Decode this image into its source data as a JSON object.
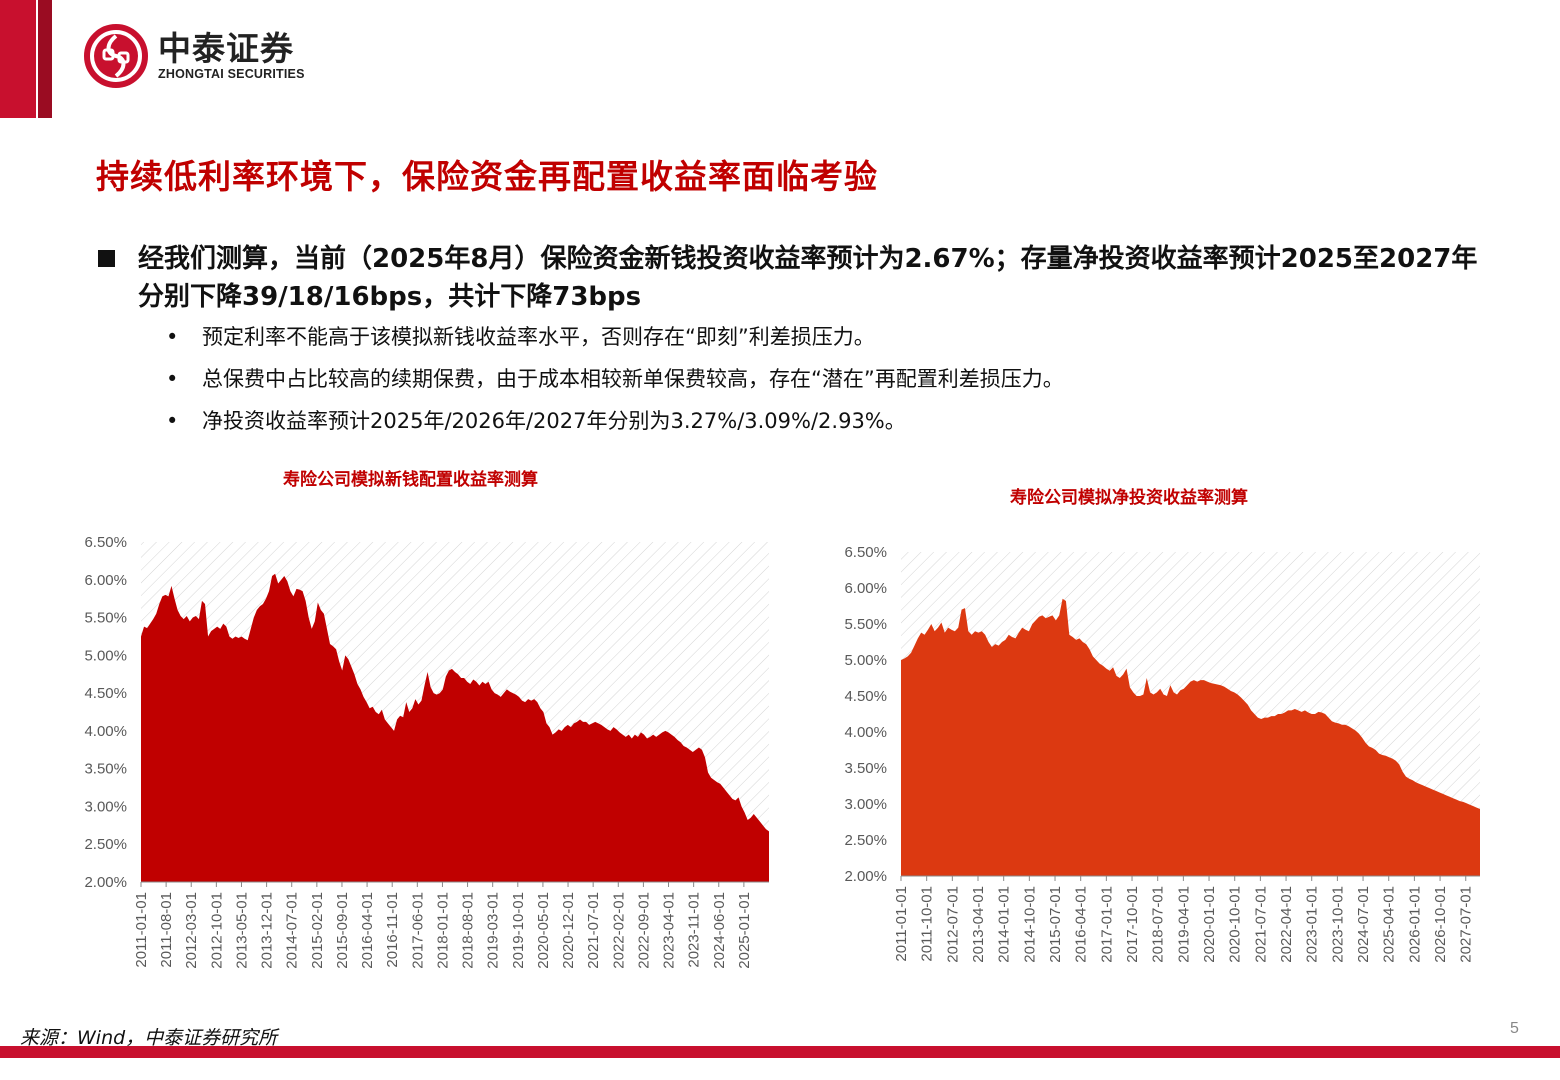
{
  "brand": {
    "name_cn": "中泰证券",
    "name_en": "ZHONGTAI SECURITIES",
    "color": "#c8102e"
  },
  "page_title": "持续低利率环境下，保险资金再配置收益率面临考验",
  "main_bullet": "经我们测算，当前（2025年8月）保险资金新钱投资收益率预计为2.67%；存量净投资收益率预计2025至2027年分别下降39/18/16bps，共计下降73bps",
  "sub_bullets": [
    {
      "marker": "•",
      "text": "预定利率不能高于该模拟新钱收益率水平，否则存在“即刻”利差损压力。"
    },
    {
      "marker": "•",
      "text": "总保费中占比较高的续期保费，由于成本相较新单保费较高，存在“潜在”再配置利差损压力。"
    },
    {
      "marker": "•",
      "text": "净投资收益率预计2025年/2026年/2027年分别为3.27%/3.09%/2.93%。"
    }
  ],
  "chart_data": [
    {
      "type": "area",
      "title": "寿险公司模拟新钱配置收益率测算",
      "color": "#c00000",
      "ylim": [
        2.0,
        6.5
      ],
      "yticks": [
        "6.50%",
        "6.00%",
        "5.50%",
        "5.00%",
        "4.50%",
        "4.00%",
        "3.50%",
        "3.00%",
        "2.50%",
        "2.00%"
      ],
      "xticks": [
        "2011-01-01",
        "2011-08-01",
        "2012-03-01",
        "2012-10-01",
        "2013-05-01",
        "2013-12-01",
        "2014-07-01",
        "2015-02-01",
        "2015-09-01",
        "2016-04-01",
        "2016-11-01",
        "2017-06-01",
        "2018-01-01",
        "2018-08-01",
        "2019-03-01",
        "2019-10-01",
        "2020-05-01",
        "2020-12-01",
        "2021-07-01",
        "2022-02-01",
        "2022-09-01",
        "2023-04-01",
        "2023-11-01",
        "2024-06-01",
        "2025-01-01"
      ],
      "x_start": "2011-01",
      "x_end": "2025-08",
      "values": [
        5.25,
        5.38,
        5.36,
        5.42,
        5.48,
        5.55,
        5.68,
        5.78,
        5.8,
        5.78,
        5.92,
        5.75,
        5.6,
        5.52,
        5.48,
        5.52,
        5.45,
        5.5,
        5.52,
        5.48,
        5.72,
        5.68,
        5.25,
        5.32,
        5.35,
        5.38,
        5.35,
        5.42,
        5.38,
        5.25,
        5.22,
        5.25,
        5.23,
        5.25,
        5.22,
        5.2,
        5.35,
        5.5,
        5.6,
        5.65,
        5.68,
        5.75,
        5.85,
        6.05,
        6.08,
        5.95,
        6.0,
        6.05,
        5.98,
        5.85,
        5.78,
        5.88,
        5.87,
        5.85,
        5.72,
        5.5,
        5.35,
        5.45,
        5.7,
        5.6,
        5.55,
        5.35,
        5.15,
        5.12,
        5.08,
        4.92,
        4.8,
        5.0,
        4.95,
        4.85,
        4.75,
        4.62,
        4.55,
        4.45,
        4.38,
        4.3,
        4.32,
        4.25,
        4.22,
        4.28,
        4.15,
        4.1,
        4.05,
        4.0,
        4.15,
        4.2,
        4.18,
        4.38,
        4.25,
        4.3,
        4.42,
        4.35,
        4.4,
        4.6,
        4.78,
        4.58,
        4.5,
        4.48,
        4.5,
        4.55,
        4.72,
        4.8,
        4.82,
        4.78,
        4.75,
        4.7,
        4.7,
        4.65,
        4.62,
        4.68,
        4.65,
        4.6,
        4.65,
        4.62,
        4.65,
        4.55,
        4.5,
        4.48,
        4.45,
        4.5,
        4.55,
        4.52,
        4.5,
        4.48,
        4.45,
        4.4,
        4.38,
        4.42,
        4.4,
        4.42,
        4.38,
        4.3,
        4.25,
        4.1,
        4.05,
        3.95,
        3.98,
        4.02,
        4.0,
        4.05,
        4.08,
        4.05,
        4.1,
        4.12,
        4.15,
        4.12,
        4.12,
        4.08,
        4.1,
        4.12,
        4.1,
        4.08,
        4.05,
        4.02,
        4.0,
        4.05,
        4.02,
        3.98,
        3.95,
        3.92,
        3.95,
        3.9,
        3.95,
        3.92,
        3.98,
        3.95,
        3.9,
        3.92,
        3.95,
        3.92,
        3.95,
        3.98,
        4.0,
        3.98,
        3.95,
        3.92,
        3.88,
        3.85,
        3.8,
        3.78,
        3.75,
        3.72,
        3.75,
        3.78,
        3.75,
        3.65,
        3.45,
        3.38,
        3.35,
        3.32,
        3.3,
        3.25,
        3.2,
        3.15,
        3.1,
        3.08,
        3.12,
        3.0,
        2.92,
        2.82,
        2.85,
        2.9,
        2.85,
        2.8,
        2.75,
        2.7,
        2.67
      ]
    },
    {
      "type": "area",
      "title": "寿险公司模拟净投资收益率测算",
      "color": "#dc3911",
      "ylim": [
        2.0,
        6.5
      ],
      "yticks": [
        "6.50%",
        "6.00%",
        "5.50%",
        "5.00%",
        "4.50%",
        "4.00%",
        "3.50%",
        "3.00%",
        "2.50%",
        "2.00%"
      ],
      "xticks": [
        "2011-01-01",
        "2011-10-01",
        "2012-07-01",
        "2013-04-01",
        "2014-01-01",
        "2014-10-01",
        "2015-07-01",
        "2016-04-01",
        "2017-01-01",
        "2017-10-01",
        "2018-07-01",
        "2019-04-01",
        "2020-01-01",
        "2020-10-01",
        "2021-07-01",
        "2022-04-01",
        "2023-01-01",
        "2023-10-01",
        "2024-07-01",
        "2025-04-01",
        "2026-01-01",
        "2026-10-01",
        "2027-07-01"
      ],
      "x_start": "2011-01",
      "x_end": "2027-12",
      "values": [
        5.0,
        5.02,
        5.05,
        5.1,
        5.2,
        5.3,
        5.38,
        5.35,
        5.42,
        5.5,
        5.4,
        5.45,
        5.52,
        5.38,
        5.45,
        5.42,
        5.4,
        5.45,
        5.7,
        5.72,
        5.4,
        5.35,
        5.4,
        5.38,
        5.4,
        5.35,
        5.25,
        5.18,
        5.22,
        5.2,
        5.25,
        5.28,
        5.35,
        5.32,
        5.3,
        5.38,
        5.45,
        5.42,
        5.4,
        5.5,
        5.55,
        5.6,
        5.62,
        5.58,
        5.6,
        5.62,
        5.55,
        5.62,
        5.85,
        5.82,
        5.35,
        5.32,
        5.28,
        5.3,
        5.25,
        5.22,
        5.15,
        5.05,
        5.0,
        4.95,
        4.92,
        4.88,
        4.85,
        4.9,
        4.78,
        4.75,
        4.8,
        4.88,
        4.62,
        4.55,
        4.5,
        4.5,
        4.52,
        4.75,
        4.55,
        4.52,
        4.55,
        4.6,
        4.52,
        4.5,
        4.65,
        4.55,
        4.52,
        4.58,
        4.6,
        4.65,
        4.7,
        4.72,
        4.7,
        4.72,
        4.72,
        4.7,
        4.68,
        4.67,
        4.66,
        4.65,
        4.63,
        4.6,
        4.57,
        4.55,
        4.52,
        4.48,
        4.43,
        4.38,
        4.3,
        4.25,
        4.2,
        4.18,
        4.2,
        4.2,
        4.22,
        4.22,
        4.25,
        4.25,
        4.27,
        4.3,
        4.3,
        4.32,
        4.3,
        4.28,
        4.3,
        4.27,
        4.25,
        4.25,
        4.28,
        4.27,
        4.25,
        4.2,
        4.15,
        4.13,
        4.12,
        4.1,
        4.1,
        4.08,
        4.05,
        4.02,
        3.98,
        3.92,
        3.85,
        3.8,
        3.78,
        3.75,
        3.7,
        3.68,
        3.67,
        3.65,
        3.63,
        3.6,
        3.55,
        3.45,
        3.38,
        3.35,
        3.33,
        3.3,
        3.28,
        3.26,
        3.24,
        3.22,
        3.2,
        3.18,
        3.16,
        3.14,
        3.12,
        3.1,
        3.08,
        3.06,
        3.04,
        3.03,
        3.01,
        2.99,
        2.97,
        2.95,
        2.93
      ]
    }
  ],
  "source": "来源：Wind，中泰证券研究所",
  "page_number": "5"
}
